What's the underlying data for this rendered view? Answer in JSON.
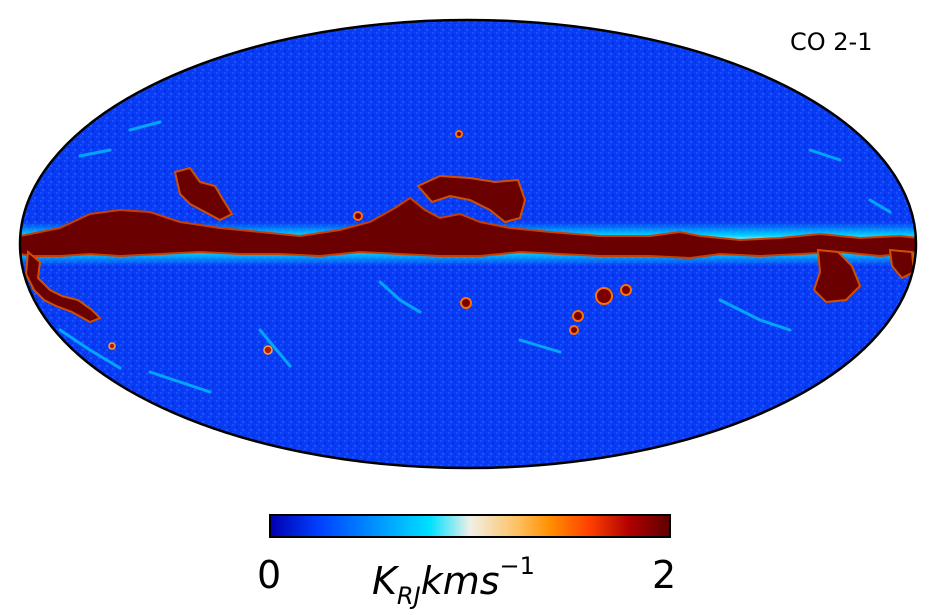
{
  "map": {
    "title": "CO 2-1",
    "projection": "mollweide",
    "colormap": [
      "#0000b0",
      "#0040ff",
      "#00a8ff",
      "#00e0ff",
      "#f0f0e8",
      "#ffc060",
      "#ff9000",
      "#ff4000",
      "#b00000",
      "#600000"
    ]
  },
  "colorbar": {
    "min_label": "0",
    "max_label": "2",
    "unit_main": "K",
    "unit_sub": "RJ",
    "unit_mid": "kms",
    "unit_sup": "−1"
  }
}
